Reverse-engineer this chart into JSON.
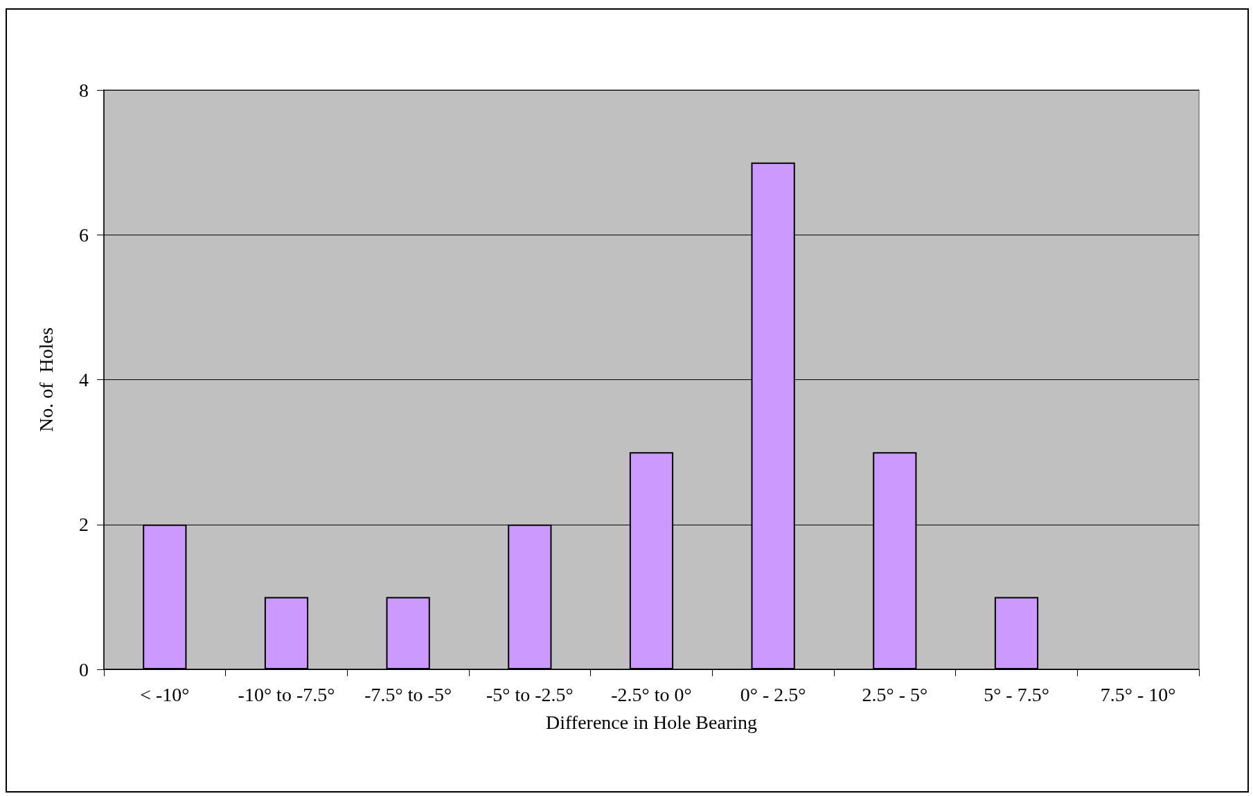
{
  "chart_data": {
    "type": "bar",
    "xlabel": "Difference in Hole Bearing",
    "ylabel": "No. of  Holes",
    "categories": [
      "< -10°",
      "-10° to -7.5°",
      "-7.5° to -5°",
      "-5° to -2.5°",
      "-2.5° to 0°",
      "0° - 2.5°",
      "2.5° - 5°",
      "5° - 7.5°",
      "7.5° - 10°"
    ],
    "values": [
      2,
      1,
      1,
      2,
      3,
      7,
      3,
      1,
      0
    ],
    "color": "#cc99ff",
    "ylim": [
      0,
      8
    ],
    "yticks": [
      0,
      2,
      4,
      6,
      8
    ],
    "grid": "y"
  }
}
